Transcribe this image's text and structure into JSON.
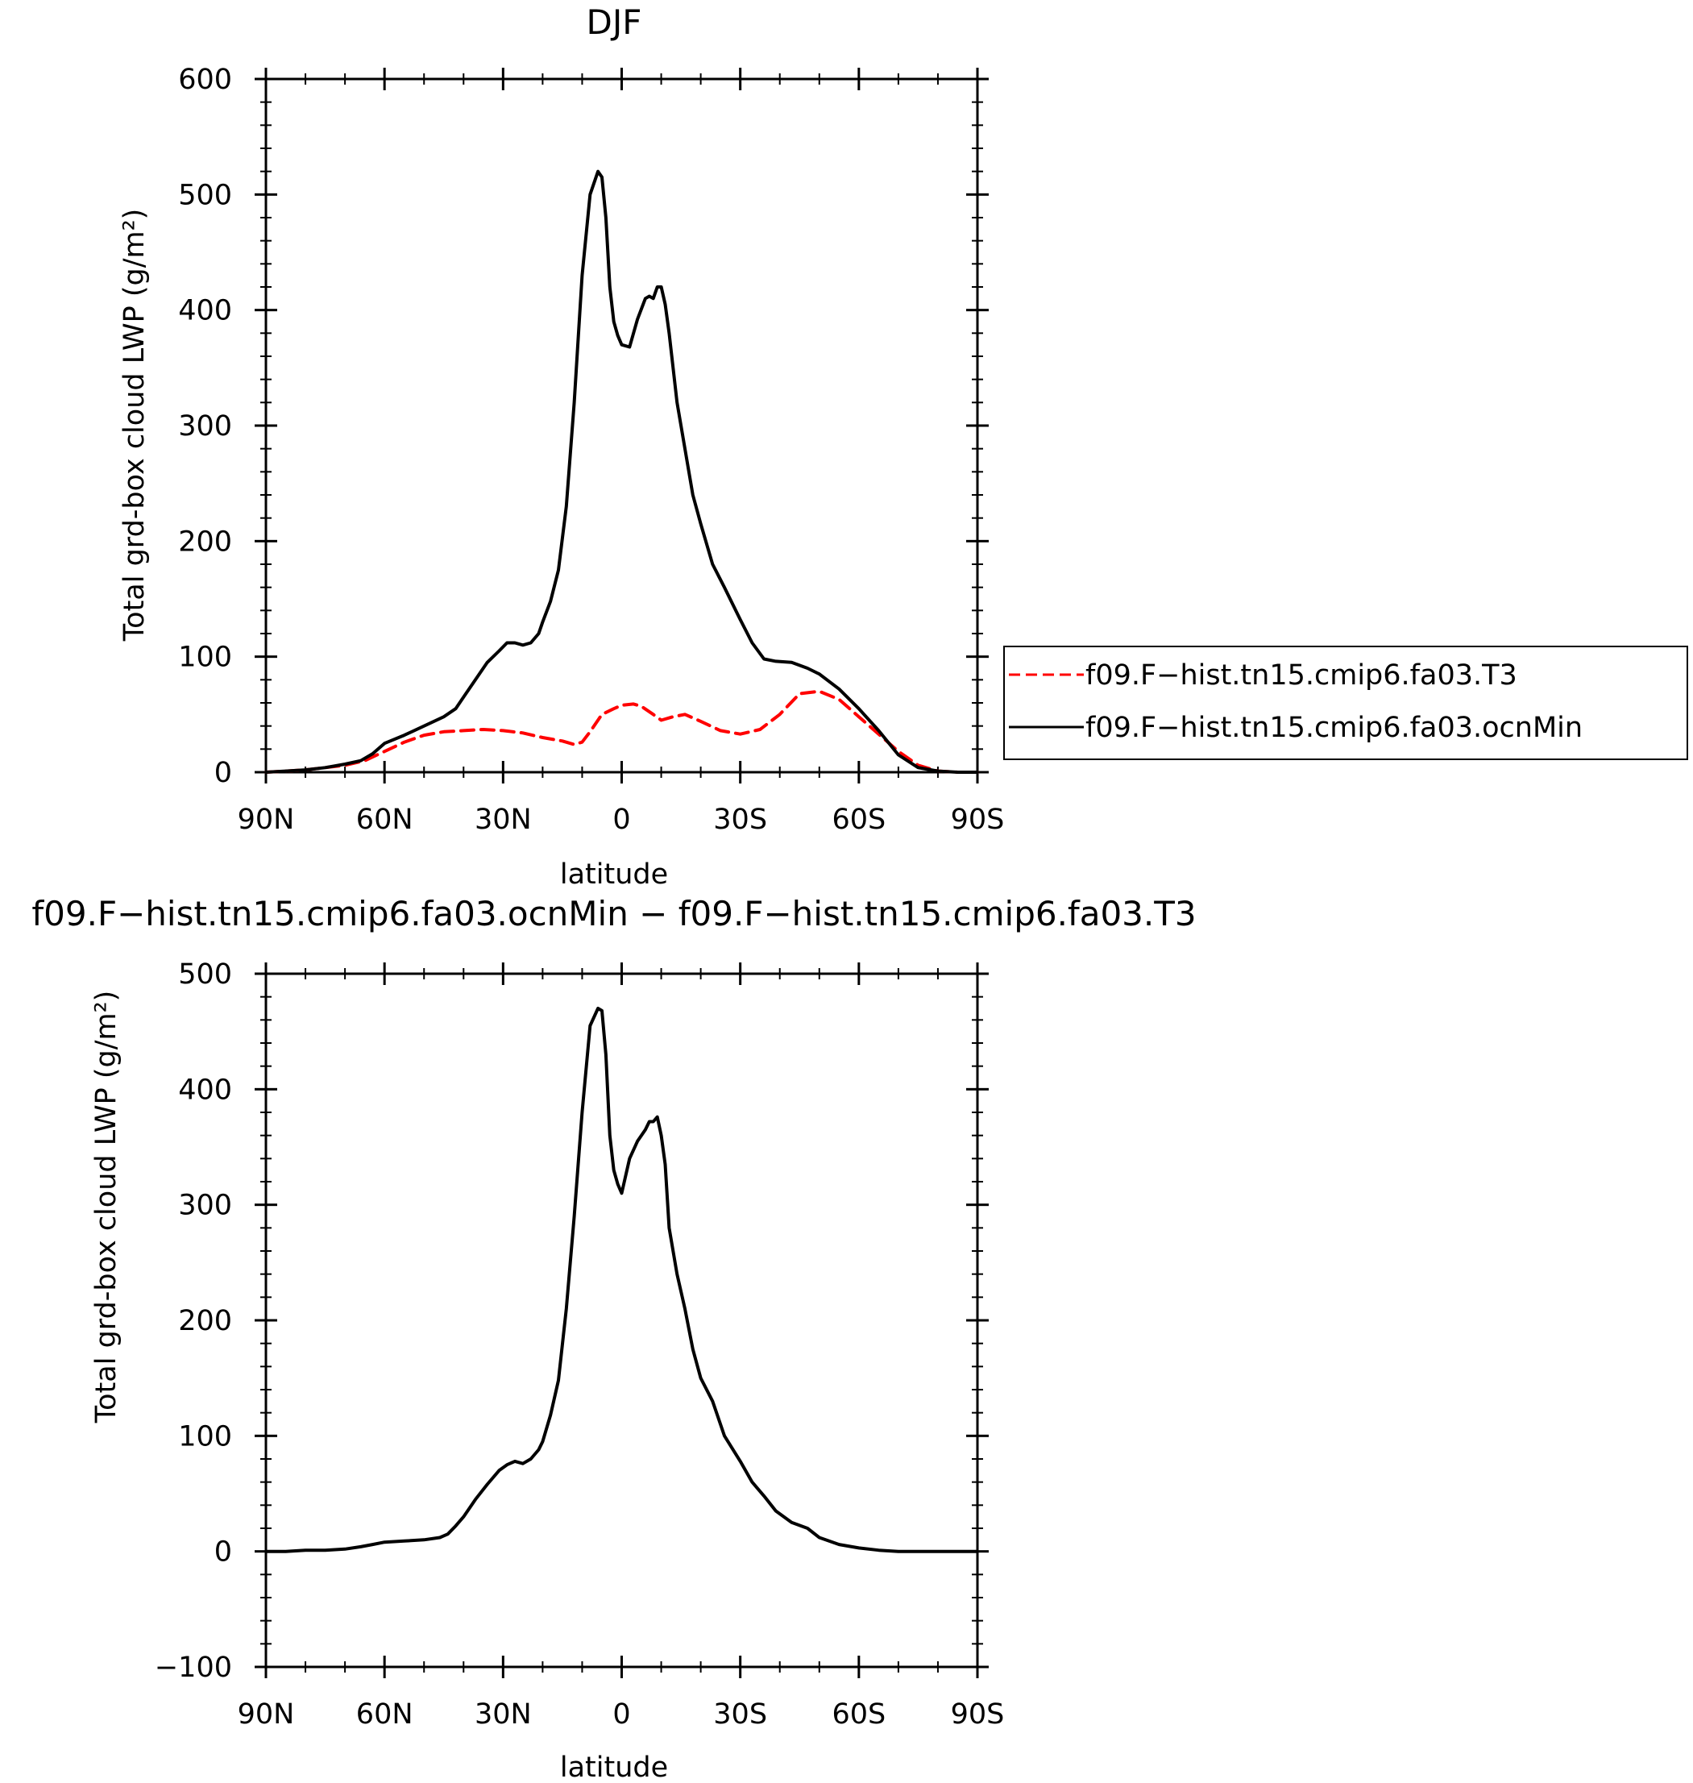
{
  "chart_data": [
    {
      "type": "line",
      "title": "DJF",
      "xlabel": "latitude",
      "ylabel": "Total grd-box cloud LWP (g/m²)",
      "xlim": [
        90,
        -90
      ],
      "ylim": [
        0,
        600
      ],
      "x_ticks": [
        90,
        60,
        30,
        0,
        -30,
        -60,
        -90
      ],
      "x_tick_labels": [
        "90N",
        "60N",
        "30N",
        "0",
        "30S",
        "60S",
        "90S"
      ],
      "y_ticks": [
        0,
        100,
        200,
        300,
        400,
        500,
        600
      ],
      "y_tick_labels": [
        "0",
        "100",
        "200",
        "300",
        "400",
        "500",
        "600"
      ],
      "legend_position": "right",
      "series": [
        {
          "name": "f09.F−hist.tn15.cmip6.fa03.T3",
          "color": "#ff0000",
          "dash": "dashed",
          "x": [
            90,
            85,
            80,
            75,
            70,
            65,
            60,
            55,
            50,
            45,
            40,
            35,
            30,
            25,
            20,
            15,
            12,
            10,
            8,
            5,
            2,
            0,
            -3,
            -5,
            -8,
            -10,
            -13,
            -16,
            -20,
            -25,
            -30,
            -35,
            -40,
            -45,
            -50,
            -55,
            -60,
            -65,
            -70,
            -75,
            -80,
            -85,
            -90
          ],
          "y": [
            0,
            1,
            2,
            4,
            6,
            10,
            18,
            26,
            32,
            35,
            36,
            37,
            36,
            34,
            30,
            27,
            24,
            26,
            35,
            50,
            55,
            58,
            59,
            57,
            50,
            45,
            48,
            50,
            44,
            36,
            33,
            37,
            50,
            68,
            70,
            63,
            48,
            33,
            18,
            6,
            1,
            0,
            0
          ]
        },
        {
          "name": "f09.F−hist.tn15.cmip6.fa03.ocnMin",
          "color": "#000000",
          "dash": "solid",
          "x": [
            90,
            85,
            80,
            75,
            70,
            66,
            63,
            60,
            55,
            50,
            45,
            42,
            40,
            37,
            34,
            31,
            29,
            27,
            25,
            23,
            21,
            20,
            18,
            16,
            14,
            12,
            10,
            8,
            6,
            5,
            4,
            3,
            2,
            1,
            0,
            -2,
            -4,
            -6,
            -7,
            -8,
            -9,
            -10,
            -11,
            -12,
            -14,
            -16,
            -18,
            -20,
            -23,
            -26,
            -30,
            -33,
            -36,
            -39,
            -43,
            -47,
            -50,
            -55,
            -60,
            -65,
            -70,
            -75,
            -80,
            -85,
            -90
          ],
          "y": [
            0,
            1,
            2,
            4,
            7,
            10,
            16,
            25,
            32,
            40,
            48,
            55,
            65,
            80,
            95,
            105,
            112,
            112,
            110,
            112,
            120,
            130,
            148,
            175,
            230,
            320,
            430,
            500,
            520,
            515,
            480,
            420,
            390,
            378,
            370,
            368,
            392,
            410,
            412,
            410,
            420,
            420,
            405,
            380,
            320,
            280,
            240,
            215,
            180,
            160,
            132,
            112,
            98,
            96,
            95,
            90,
            85,
            72,
            55,
            36,
            15,
            4,
            1,
            0,
            0
          ]
        }
      ]
    },
    {
      "type": "line",
      "title": "f09.F−hist.tn15.cmip6.fa03.ocnMin − f09.F−hist.tn15.cmip6.fa03.T3",
      "xlabel": "latitude",
      "ylabel": "Total grd-box cloud LWP (g/m²)",
      "xlim": [
        90,
        -90
      ],
      "ylim": [
        -100,
        500
      ],
      "x_ticks": [
        90,
        60,
        30,
        0,
        -30,
        -60,
        -90
      ],
      "x_tick_labels": [
        "90N",
        "60N",
        "30N",
        "0",
        "30S",
        "60S",
        "90S"
      ],
      "y_ticks": [
        -100,
        0,
        100,
        200,
        300,
        400,
        500
      ],
      "y_tick_labels": [
        "−100",
        "0",
        "100",
        "200",
        "300",
        "400",
        "500"
      ],
      "series": [
        {
          "color": "#000000",
          "dash": "solid",
          "x": [
            90,
            85,
            80,
            75,
            70,
            66,
            63,
            60,
            55,
            50,
            46,
            44,
            42,
            40,
            37,
            34,
            31,
            29,
            27,
            25,
            23,
            21,
            20,
            18,
            16,
            14,
            12,
            10,
            8,
            6,
            5,
            4,
            3,
            2,
            1,
            0,
            -2,
            -4,
            -6,
            -7,
            -8,
            -9,
            -10,
            -11,
            -12,
            -14,
            -16,
            -18,
            -20,
            -23,
            -26,
            -30,
            -33,
            -36,
            -39,
            -43,
            -47,
            -50,
            -55,
            -60,
            -65,
            -70,
            -75,
            -80,
            -85,
            -90
          ],
          "y": [
            0,
            0,
            1,
            1,
            2,
            4,
            6,
            8,
            9,
            10,
            12,
            15,
            22,
            30,
            45,
            58,
            70,
            75,
            78,
            76,
            80,
            88,
            95,
            118,
            148,
            210,
            290,
            380,
            455,
            470,
            468,
            430,
            360,
            330,
            318,
            310,
            340,
            355,
            365,
            372,
            372,
            376,
            360,
            335,
            280,
            240,
            210,
            175,
            150,
            130,
            100,
            78,
            60,
            48,
            35,
            25,
            20,
            12,
            6,
            3,
            1,
            0,
            0,
            0,
            0,
            0
          ]
        }
      ]
    }
  ]
}
